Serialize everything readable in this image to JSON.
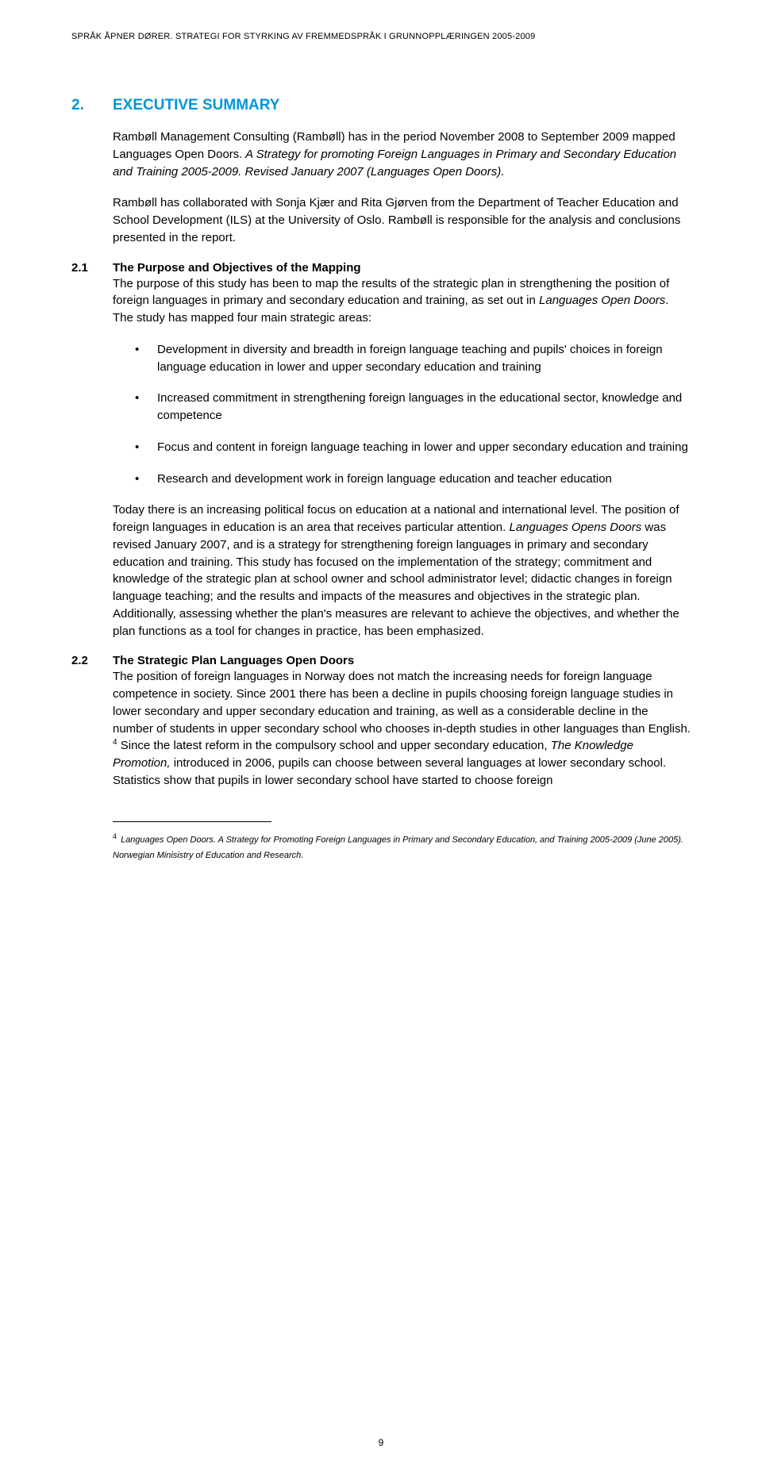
{
  "header": {
    "running": "SPRÅK ÅPNER DØRER. STRATEGI FOR STYRKING AV FREMMEDSPRÅK I GRUNNOPPLÆRINGEN 2005-2009"
  },
  "colors": {
    "heading": "#0095d9",
    "text": "#000000",
    "background": "#ffffff"
  },
  "section": {
    "number": "2.",
    "title": "EXECUTIVE SUMMARY"
  },
  "intro": {
    "p1a": "Rambøll Management Consulting (Rambøll) has in the period November 2008 to September 2009 mapped Languages Open Doors.",
    "p1b": " A Strategy for promoting Foreign Languages in Primary and Secondary Education and Training 2005-2009. Revised January 2007 (Languages Open Doors).",
    "p2": "Rambøll has collaborated with Sonja Kjær and Rita Gjørven from the Department of Teacher Education and School Development (ILS) at the University of Oslo. Rambøll is responsible for the analysis and conclusions presented in the report."
  },
  "sub21": {
    "number": "2.1",
    "title": "The Purpose and Objectives of the Mapping",
    "lead_a": "The purpose of this study has been to map the results of the strategic plan in strengthening the position of foreign languages in primary and secondary education and training, as set out in ",
    "lead_i": "Languages Open Doors",
    "lead_b": ". The study has mapped four main strategic areas:",
    "bullets": [
      "Development in diversity and breadth in foreign language teaching and pupils' choices in foreign language education in lower and upper secondary education and training",
      "Increased commitment in strengthening foreign languages in the educational sector, knowledge and competence",
      "Focus and content in foreign language teaching in lower and upper secondary education and training",
      "Research and development work in foreign language education and teacher education"
    ],
    "tail_a": "Today there is an increasing political focus on education at a national and international level. The position of foreign languages in education is an area that receives particular attention. ",
    "tail_i": "Languages Opens Doors",
    "tail_b": " was revised January 2007, and is a strategy for strengthening foreign languages in primary and secondary education and training. This study has focused on the implementation of the strategy; commitment and knowledge of the strategic plan at school owner and school administrator level; didactic changes in foreign language teaching; and the results and impacts of the measures and objectives in the strategic plan. Additionally, assessing whether the plan's measures are relevant to achieve the objectives, and whether the plan functions as a tool for changes in practice, has been emphasized."
  },
  "sub22": {
    "number": "2.2",
    "title": "The Strategic Plan Languages Open Doors",
    "body_a": "The position of foreign languages in Norway does not match the increasing needs for foreign language competence in society. Since 2001 there has been a decline in pupils choosing foreign language studies in lower secondary and upper secondary education and training, as well as a considerable decline in the number of students in upper secondary school who chooses in-depth studies in other languages than English. ",
    "fref": "4",
    "body_b": " Since the latest reform in the compulsory school and upper secondary education, ",
    "body_i": "The Knowledge Promotion,",
    "body_c": " introduced in 2006, pupils can choose between several languages at lower secondary school. Statistics show that pupils in lower secondary school have started to choose foreign"
  },
  "footnote": {
    "num": "4",
    "text_a": " Languages Open Doors. A Strategy for Promoting Foreign Languages in Primary and Secondary Education, and Training 2005-2009 (June 2005). Norwegian Minisistry of Education and Research."
  },
  "pagenum": "9"
}
